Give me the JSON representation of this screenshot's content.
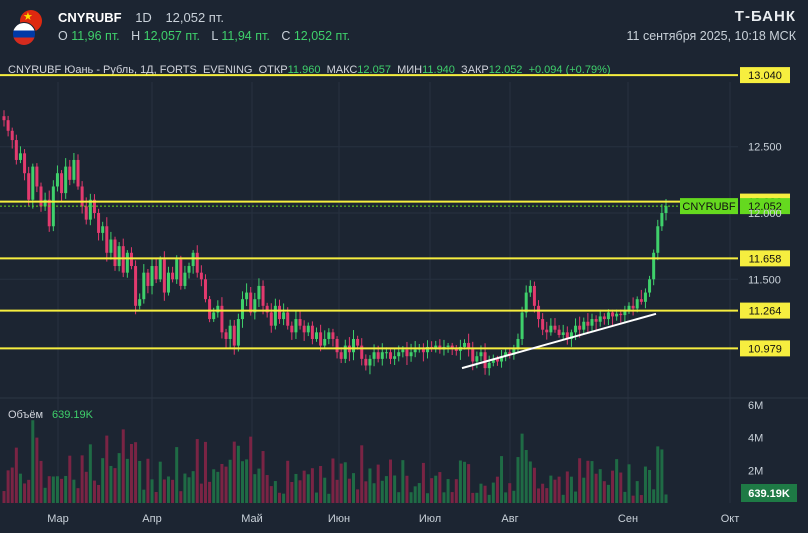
{
  "header": {
    "ticker": "CNYRUBF",
    "timeframe": "1D",
    "last": "12,052 пт.",
    "o_label": "O",
    "o_value": "11,96 пт.",
    "h_label": "H",
    "h_value": "12,057 пт.",
    "l_label": "L",
    "l_value": "11,94 пт.",
    "c_label": "C",
    "c_value": "12,052 пт.",
    "brand": "Т-БАНК",
    "datetime": "11 сентября 2025, 10:18 МСК"
  },
  "legend": {
    "name": "CNYRUBF Юань - Рубль, 1Д, FORTS_EVENING",
    "open_label": "ОТКР",
    "open": "11.960",
    "high_label": "МАКС",
    "high": "12.057",
    "low_label": "МИН",
    "low": "11.940",
    "close_label": "ЗАКР",
    "close": "12.052",
    "change": "+0.094 (+0.79%)"
  },
  "volume": {
    "title": "Объём",
    "value": "639.19K",
    "axis_ticks": [
      "6M",
      "4M",
      "2M"
    ],
    "last_badge": "639.19K"
  },
  "colors": {
    "background": "#1c2532",
    "up": "#3fd06b",
    "down": "#e23a6e",
    "level_line": "#f6ee3f",
    "trend_line": "#ffffff",
    "price_badge": "#65d91f"
  },
  "chart_data": {
    "type": "candlestick",
    "price_axis_ticks": [
      "12.500",
      "12.000",
      "11.500"
    ],
    "x_tick_labels": [
      "Мар",
      "Апр",
      "Май",
      "Июн",
      "Июл",
      "Авг",
      "Сен",
      "Окт"
    ],
    "horizontal_levels": [
      13.04,
      12.086,
      11.658,
      11.264,
      10.979
    ],
    "level_labels": [
      "13.040",
      "12.086",
      "11.658",
      "11.264",
      "10.979"
    ],
    "last_price": 12.052,
    "last_price_label": "CNYRUBF",
    "last_price_value": "12.052",
    "trend_line": {
      "from": [
        "mid-Jul",
        10.83
      ],
      "to": [
        "early-Sep",
        11.24
      ]
    },
    "daily_closes": [
      12.7,
      12.62,
      12.55,
      12.4,
      12.45,
      12.3,
      12.1,
      12.35,
      12.2,
      12.05,
      12.1,
      11.9,
      12.2,
      12.3,
      12.15,
      12.35,
      12.25,
      12.4,
      12.2,
      12.05,
      11.95,
      12.1,
      12.0,
      11.85,
      11.9,
      11.7,
      11.8,
      11.6,
      11.75,
      11.55,
      11.7,
      11.6,
      11.3,
      11.35,
      11.55,
      11.45,
      11.6,
      11.5,
      11.65,
      11.4,
      11.55,
      11.5,
      11.65,
      11.45,
      11.55,
      11.6,
      11.7,
      11.55,
      11.5,
      11.35,
      11.2,
      11.25,
      11.3,
      11.1,
      11.05,
      11.15,
      11.0,
      11.2,
      11.35,
      11.4,
      11.25,
      11.35,
      11.45,
      11.3,
      11.25,
      11.15,
      11.3,
      11.2,
      11.25,
      11.15,
      11.1,
      11.2,
      11.15,
      11.1,
      11.15,
      11.05,
      11.1,
      11.0,
      11.05,
      11.1,
      11.05,
      10.95,
      10.9,
      11.0,
      10.95,
      11.05,
      11.0,
      10.9,
      10.85,
      10.9,
      10.95,
      10.9,
      10.95,
      10.95,
      10.9,
      10.92,
      10.95,
      10.97,
      10.92,
      10.95,
      10.97,
      10.98,
      10.95,
      10.99,
      10.98,
      11.0,
      10.97,
      10.99,
      11.0,
      10.98,
      10.96,
      10.99,
      11.02,
      10.98,
      10.88,
      10.92,
      10.95,
      10.83,
      10.87,
      10.9,
      10.88,
      10.92,
      10.95,
      10.93,
      10.98,
      11.05,
      11.25,
      11.4,
      11.45,
      11.3,
      11.2,
      11.12,
      11.1,
      11.15,
      11.12,
      11.08,
      11.1,
      11.05,
      11.1,
      11.15,
      11.12,
      11.18,
      11.15,
      11.2,
      11.18,
      11.22,
      11.2,
      11.25,
      11.22,
      11.24,
      11.23,
      11.26,
      11.3,
      11.28,
      11.35,
      11.33,
      11.4,
      11.5,
      11.7,
      11.9,
      12.0,
      12.052
    ]
  }
}
